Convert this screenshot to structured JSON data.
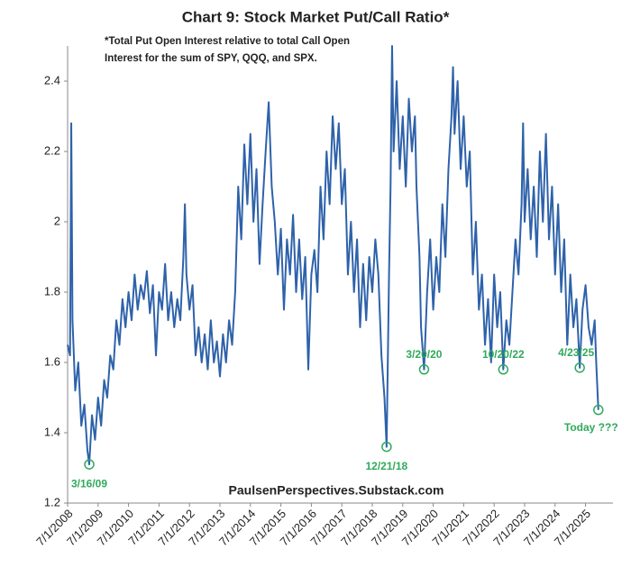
{
  "chart_data": {
    "type": "line",
    "title": "Chart 9: Stock Market Put/Call Ratio*",
    "note": [
      "*Total Put Open Interest relative to total Call Open",
      "Interest for the sum of SPY, QQQ, and SPX."
    ],
    "footer": "PaulsenPerspectives.Substack.com",
    "xlim": [
      2008.5,
      2026.4
    ],
    "ylim": [
      1.2,
      2.5
    ],
    "yticks": [
      1.2,
      1.4,
      1.6,
      1.8,
      2,
      2.2,
      2.4
    ],
    "xticks": [
      {
        "value": 2008.5,
        "label": "7/1/2008"
      },
      {
        "value": 2009.5,
        "label": "7/1/2009"
      },
      {
        "value": 2010.5,
        "label": "7/1/2010"
      },
      {
        "value": 2011.5,
        "label": "7/1/2011"
      },
      {
        "value": 2012.5,
        "label": "7/1/2012"
      },
      {
        "value": 2013.5,
        "label": "7/1/2013"
      },
      {
        "value": 2014.5,
        "label": "7/1/2014"
      },
      {
        "value": 2015.5,
        "label": "7/1/2015"
      },
      {
        "value": 2016.5,
        "label": "7/1/2016"
      },
      {
        "value": 2017.5,
        "label": "7/1/2017"
      },
      {
        "value": 2018.5,
        "label": "7/1/2018"
      },
      {
        "value": 2019.5,
        "label": "7/1/2019"
      },
      {
        "value": 2020.5,
        "label": "7/1/2020"
      },
      {
        "value": 2021.5,
        "label": "7/1/2021"
      },
      {
        "value": 2022.5,
        "label": "7/1/2022"
      },
      {
        "value": 2023.5,
        "label": "7/1/2023"
      },
      {
        "value": 2024.5,
        "label": "7/1/2024"
      },
      {
        "value": 2025.5,
        "label": "7/1/2025"
      }
    ],
    "grid": false,
    "series": [
      {
        "color": "#2e62aa",
        "x": [
          2008.5,
          2008.58,
          2008.62,
          2008.66,
          2008.75,
          2008.85,
          2008.95,
          2009.05,
          2009.15,
          2009.21,
          2009.3,
          2009.4,
          2009.5,
          2009.6,
          2009.7,
          2009.8,
          2009.9,
          2010.0,
          2010.1,
          2010.2,
          2010.3,
          2010.4,
          2010.5,
          2010.6,
          2010.7,
          2010.8,
          2010.9,
          2011.0,
          2011.1,
          2011.2,
          2011.3,
          2011.4,
          2011.5,
          2011.6,
          2011.7,
          2011.8,
          2011.9,
          2012.0,
          2012.1,
          2012.2,
          2012.3,
          2012.35,
          2012.4,
          2012.5,
          2012.6,
          2012.7,
          2012.8,
          2012.9,
          2013.0,
          2013.1,
          2013.2,
          2013.3,
          2013.4,
          2013.5,
          2013.6,
          2013.7,
          2013.8,
          2013.9,
          2014.0,
          2014.1,
          2014.2,
          2014.3,
          2014.4,
          2014.5,
          2014.6,
          2014.7,
          2014.8,
          2014.9,
          2015.0,
          2015.1,
          2015.2,
          2015.3,
          2015.4,
          2015.5,
          2015.6,
          2015.7,
          2015.8,
          2015.9,
          2016.0,
          2016.1,
          2016.2,
          2016.3,
          2016.4,
          2016.5,
          2016.6,
          2016.7,
          2016.8,
          2016.9,
          2017.0,
          2017.1,
          2017.2,
          2017.3,
          2017.4,
          2017.5,
          2017.6,
          2017.7,
          2017.8,
          2017.9,
          2018.0,
          2018.1,
          2018.2,
          2018.3,
          2018.4,
          2018.5,
          2018.6,
          2018.7,
          2018.8,
          2018.9,
          2018.97,
          2019.05,
          2019.1,
          2019.15,
          2019.2,
          2019.3,
          2019.4,
          2019.5,
          2019.6,
          2019.7,
          2019.8,
          2019.9,
          2019.95,
          2020.05,
          2020.1,
          2020.2,
          2020.3,
          2020.4,
          2020.5,
          2020.6,
          2020.7,
          2020.8,
          2020.9,
          2021.0,
          2021.1,
          2021.15,
          2021.2,
          2021.3,
          2021.4,
          2021.5,
          2021.6,
          2021.7,
          2021.8,
          2021.9,
          2022.0,
          2022.1,
          2022.2,
          2022.3,
          2022.4,
          2022.5,
          2022.6,
          2022.7,
          2022.8,
          2022.9,
          2023.0,
          2023.1,
          2023.2,
          2023.3,
          2023.4,
          2023.45,
          2023.5,
          2023.6,
          2023.7,
          2023.8,
          2023.9,
          2024.0,
          2024.1,
          2024.2,
          2024.3,
          2024.4,
          2024.5,
          2024.6,
          2024.7,
          2024.8,
          2024.9,
          2025.0,
          2025.1,
          2025.2,
          2025.31,
          2025.4,
          2025.5,
          2025.6,
          2025.7,
          2025.8,
          2025.85,
          2025.92
        ],
        "values": [
          1.65,
          1.62,
          2.28,
          1.72,
          1.52,
          1.6,
          1.42,
          1.48,
          1.35,
          1.31,
          1.45,
          1.38,
          1.5,
          1.42,
          1.55,
          1.5,
          1.62,
          1.58,
          1.72,
          1.65,
          1.78,
          1.7,
          1.8,
          1.72,
          1.85,
          1.75,
          1.82,
          1.78,
          1.86,
          1.74,
          1.82,
          1.62,
          1.8,
          1.75,
          1.88,
          1.72,
          1.8,
          1.7,
          1.78,
          1.72,
          1.9,
          2.05,
          1.85,
          1.75,
          1.82,
          1.62,
          1.7,
          1.6,
          1.68,
          1.58,
          1.72,
          1.6,
          1.66,
          1.56,
          1.68,
          1.6,
          1.72,
          1.65,
          1.8,
          2.1,
          1.95,
          2.22,
          2.05,
          2.25,
          2.0,
          2.15,
          1.88,
          2.05,
          2.2,
          2.34,
          2.1,
          2.0,
          1.85,
          1.98,
          1.75,
          1.95,
          1.85,
          2.02,
          1.8,
          1.95,
          1.78,
          1.9,
          1.58,
          1.85,
          1.92,
          1.8,
          2.1,
          1.95,
          2.2,
          2.05,
          2.3,
          2.15,
          2.28,
          2.05,
          2.15,
          1.85,
          2.0,
          1.8,
          1.95,
          1.7,
          1.88,
          1.72,
          1.9,
          1.8,
          1.95,
          1.85,
          1.62,
          1.5,
          1.36,
          1.85,
          2.1,
          2.5,
          2.2,
          2.4,
          2.15,
          2.3,
          2.1,
          2.35,
          2.2,
          2.3,
          2.1,
          1.9,
          1.7,
          1.58,
          1.8,
          1.95,
          1.75,
          1.9,
          1.8,
          2.05,
          1.9,
          2.15,
          2.3,
          2.44,
          2.25,
          2.4,
          2.15,
          2.3,
          2.1,
          2.2,
          1.85,
          2.0,
          1.75,
          1.85,
          1.65,
          1.78,
          1.6,
          1.85,
          1.7,
          1.8,
          1.58,
          1.72,
          1.65,
          1.8,
          1.95,
          1.85,
          2.05,
          2.28,
          2.0,
          2.15,
          1.95,
          2.1,
          1.9,
          2.2,
          2.0,
          2.25,
          1.95,
          2.1,
          1.85,
          2.05,
          1.8,
          1.95,
          1.65,
          1.85,
          1.7,
          1.78,
          1.585,
          1.75,
          1.82,
          1.7,
          1.65,
          1.72,
          1.6,
          1.465
        ]
      }
    ],
    "annotations": [
      {
        "text": "3/16/09",
        "x": 2009.21,
        "y": 1.31
      },
      {
        "text": "12/21/18",
        "x": 2018.97,
        "y": 1.36
      },
      {
        "text": "3/20/20",
        "x": 2020.2,
        "y": 1.58
      },
      {
        "text": "10/20/22",
        "x": 2022.8,
        "y": 1.58
      },
      {
        "text": "4/23/25",
        "x": 2025.31,
        "y": 1.585
      },
      {
        "text": "Today ???",
        "x": 2025.92,
        "y": 1.465
      }
    ],
    "annotation_color": "#2faa5c"
  }
}
